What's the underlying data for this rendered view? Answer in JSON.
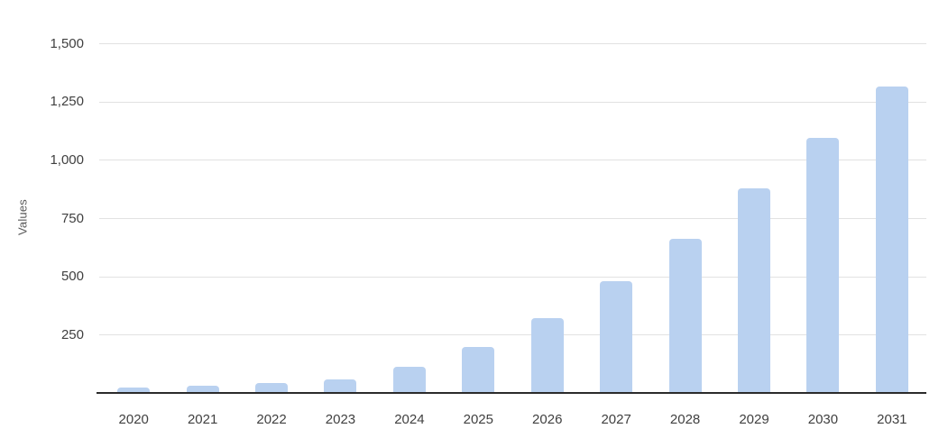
{
  "chart_data": {
    "type": "bar",
    "title": "",
    "xlabel": "",
    "ylabel": "Values",
    "categories": [
      "2020",
      "2021",
      "2022",
      "2023",
      "2024",
      "2025",
      "2026",
      "2027",
      "2028",
      "2029",
      "2030",
      "2031"
    ],
    "values": [
      24,
      31,
      42,
      58,
      111,
      197,
      321,
      478,
      661,
      877,
      1094,
      1314
    ],
    "ylim": [
      0,
      1500
    ],
    "yticks": [
      {
        "label": "250",
        "value": 250
      },
      {
        "label": "500",
        "value": 500
      },
      {
        "label": "750",
        "value": 750
      },
      {
        "label": "1,000",
        "value": 1000
      },
      {
        "label": "1,250",
        "value": 1250
      },
      {
        "label": "1,500",
        "value": 1500
      }
    ],
    "grid": true,
    "legend": false,
    "colors": {
      "bar_fill": "#b9d1f0",
      "gridline": "#e2e2e2",
      "axis_line": "#2b2b2b",
      "tick_label": "#404040",
      "axis_title": "#595959",
      "background": "#ffffff"
    }
  }
}
